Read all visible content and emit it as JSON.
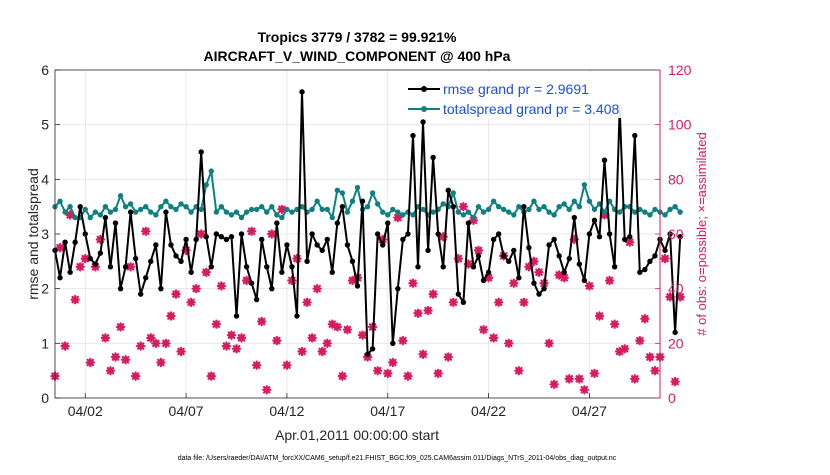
{
  "chart_data": {
    "type": "line",
    "title": [
      "Tropics 3779 / 3782 = 99.921%",
      "AIRCRAFT_V_WIND_COMPONENT @ 400 hPa"
    ],
    "xlabel": "Apr.01,2011 00:00:00 start",
    "ylabel_left": "rmse and totalspread",
    "ylabel_right": "# of obs: o=possible; ×=assimilated",
    "footer": "data file: /Users/raeder/DAI/ATM_forcXX/CAM6_setup/f.e21.FHIST_BGC.f09_025.CAM6assim.011/Diags_NTrS_2011-04/obs_diag_output.nc",
    "xlim": [
      0.5,
      30.5
    ],
    "ylim_left": [
      0,
      6
    ],
    "ylim_right": [
      0,
      120
    ],
    "x_tick_values": [
      2,
      7,
      12,
      17,
      22,
      27
    ],
    "x_tick_labels": [
      "04/02",
      "04/07",
      "04/12",
      "04/17",
      "04/22",
      "04/27"
    ],
    "y_left_ticks": [
      0,
      1,
      2,
      3,
      4,
      5,
      6
    ],
    "y_right_ticks": [
      0,
      20,
      40,
      60,
      80,
      100,
      120
    ],
    "grid": true,
    "legend_position": "top-right",
    "colors": {
      "rmse": "#000000",
      "spread": "#0f8080",
      "obs": "#d81b60",
      "legend_text": "#1f4fd8",
      "right_axis": "#d81b60"
    },
    "x_start": 0.5,
    "x_step": 0.25,
    "series": [
      {
        "name": "rmse grand pr = 2.9691",
        "axis": "left",
        "values": [
          2.7,
          2.2,
          2.85,
          2.3,
          2.85,
          3.5,
          3.0,
          2.55,
          2.45,
          2.65,
          3.3,
          2.4,
          3.2,
          2.0,
          2.4,
          3.4,
          2.55,
          1.9,
          2.2,
          2.5,
          2.8,
          2.0,
          3.4,
          2.8,
          2.6,
          2.5,
          2.9,
          2.3,
          2.9,
          4.5,
          2.95,
          2.4,
          3.0,
          2.95,
          2.9,
          2.95,
          1.5,
          3.0,
          2.4,
          2.1,
          1.8,
          2.9,
          2.4,
          2.0,
          3.2,
          2.3,
          2.8,
          2.4,
          1.5,
          5.6,
          2.5,
          3.0,
          2.8,
          2.7,
          2.9,
          2.3,
          3.2,
          3.5,
          2.8,
          2.5,
          2.05,
          3.6,
          0.8,
          0.9,
          3.0,
          2.8,
          3.2,
          1.0,
          2.0,
          2.9,
          3.0,
          4.8,
          2.4,
          5.05,
          2.7,
          4.4,
          3.0,
          2.4,
          3.8,
          3.5,
          1.9,
          1.75,
          3.2,
          2.4,
          2.6,
          2.15,
          2.3,
          2.9,
          3.0,
          2.6,
          2.5,
          2.7,
          2.2,
          3.5,
          2.75,
          2.1,
          1.9,
          2.0,
          2.8,
          2.9,
          2.6,
          2.3,
          2.55,
          3.3,
          2.45,
          2.15,
          3.0,
          3.25,
          2.95,
          4.35,
          3.0,
          2.4,
          5.3,
          2.9,
          2.95,
          4.8,
          2.3,
          2.35,
          2.5,
          2.6,
          2.9,
          2.7,
          3.0,
          1.2,
          2.95
        ]
      },
      {
        "name": "totalspread grand pr = 3.408",
        "axis": "left",
        "values": [
          3.5,
          3.6,
          3.4,
          3.5,
          3.3,
          3.3,
          3.45,
          3.3,
          3.4,
          3.35,
          3.5,
          3.4,
          3.45,
          3.7,
          3.5,
          3.55,
          3.4,
          3.45,
          3.5,
          3.4,
          3.35,
          3.5,
          3.6,
          3.5,
          3.45,
          3.55,
          3.5,
          3.4,
          3.5,
          3.45,
          3.9,
          4.15,
          3.4,
          3.5,
          3.4,
          3.35,
          3.4,
          3.3,
          3.4,
          3.45,
          3.45,
          3.5,
          3.4,
          3.5,
          3.35,
          3.3,
          3.45,
          3.4,
          3.45,
          3.5,
          3.4,
          3.45,
          3.6,
          3.45,
          3.45,
          3.3,
          3.8,
          3.75,
          3.4,
          3.6,
          3.85,
          3.45,
          3.5,
          3.75,
          3.55,
          3.4,
          3.35,
          3.45,
          3.4,
          3.35,
          3.4,
          3.35,
          3.5,
          3.45,
          3.35,
          3.4,
          3.45,
          3.55,
          3.5,
          3.75,
          3.4,
          3.35,
          3.4,
          3.3,
          3.5,
          3.4,
          3.45,
          3.6,
          3.5,
          3.45,
          3.4,
          3.35,
          3.5,
          3.4,
          3.45,
          3.6,
          3.45,
          3.5,
          3.4,
          3.35,
          3.5,
          3.55,
          3.45,
          3.6,
          3.5,
          3.9,
          3.6,
          3.45,
          3.55,
          3.4,
          3.6,
          3.45,
          3.4,
          3.5,
          3.5,
          3.4,
          3.45,
          3.4,
          3.35,
          3.45,
          3.4,
          3.35,
          3.45,
          3.5,
          3.4
        ]
      },
      {
        "name": "assimilated observations",
        "axis": "right",
        "values": [
          8,
          55,
          19,
          67,
          36,
          48,
          51,
          13,
          48,
          58,
          22,
          10,
          15,
          26,
          14,
          48,
          8,
          19,
          61,
          22,
          20,
          13,
          20,
          30,
          38,
          17,
          54,
          35,
          40,
          60,
          46,
          8,
          27,
          41,
          19,
          23,
          18,
          22,
          43,
          61,
          12,
          28,
          3,
          60,
          21,
          69,
          12,
          43,
          51,
          17,
          35,
          22,
          40,
          17,
          20,
          27,
          26,
          8,
          25,
          43,
          44,
          23,
          15,
          26,
          10,
          58,
          9,
          13,
          66,
          21,
          8,
          42,
          31,
          16,
          32,
          38,
          9,
          59,
          15,
          35,
          51,
          70,
          49,
          65,
          54,
          25,
          44,
          22,
          35,
          52,
          20,
          42,
          10,
          35,
          48,
          50,
          46,
          42,
          20,
          5,
          45,
          44,
          7,
          58,
          7,
          3,
          41,
          9,
          30,
          67,
          43,
          27,
          17,
          18,
          57,
          7,
          21,
          29,
          15,
          10,
          15,
          51,
          37,
          6,
          37
        ]
      }
    ]
  }
}
